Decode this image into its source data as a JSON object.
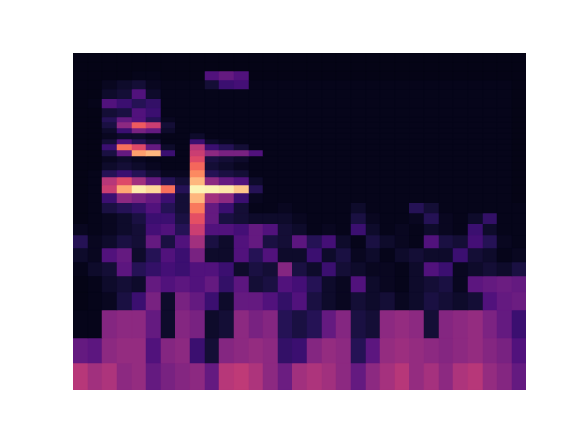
{
  "chart_data": {
    "type": "heatmap",
    "color": "magma",
    "tick_labels": false,
    "xlim": [
      0,
      31
    ],
    "ylim": [
      0,
      369
    ],
    "zlim": [
      0,
      100
    ],
    "y_edges": [
      0,
      29,
      57,
      87,
      107,
      124,
      140,
      155,
      169,
      182,
      194,
      205,
      215,
      224,
      233,
      241,
      249,
      256,
      263,
      269,
      275,
      281,
      287,
      293,
      299,
      309,
      319,
      329,
      339,
      349,
      359,
      369
    ],
    "z": [
      [
        50,
        45,
        48,
        40,
        42,
        30,
        35,
        38,
        40,
        30,
        50,
        52,
        48,
        40,
        32,
        45,
        48,
        45,
        40,
        30,
        40,
        46,
        50,
        42,
        46,
        40,
        48,
        50,
        42,
        38,
        30
      ],
      [
        30,
        28,
        40,
        42,
        42,
        25,
        38,
        40,
        20,
        10,
        38,
        40,
        42,
        40,
        18,
        20,
        38,
        42,
        40,
        15,
        28,
        42,
        44,
        42,
        40,
        38,
        40,
        42,
        38,
        35,
        25
      ],
      [
        5,
        5,
        38,
        40,
        40,
        30,
        8,
        38,
        35,
        8,
        10,
        40,
        35,
        38,
        15,
        12,
        15,
        30,
        38,
        12,
        10,
        40,
        42,
        40,
        10,
        38,
        40,
        42,
        36,
        30,
        20
      ],
      [
        4,
        5,
        6,
        12,
        20,
        35,
        8,
        35,
        30,
        20,
        8,
        30,
        30,
        25,
        18,
        25,
        12,
        8,
        6,
        10,
        8,
        10,
        6,
        8,
        12,
        10,
        8,
        10,
        25,
        30,
        32
      ],
      [
        4,
        5,
        8,
        10,
        8,
        30,
        25,
        28,
        25,
        30,
        18,
        28,
        10,
        12,
        25,
        22,
        15,
        8,
        6,
        25,
        8,
        6,
        5,
        8,
        10,
        12,
        6,
        28,
        30,
        32,
        30
      ],
      [
        5,
        8,
        10,
        28,
        15,
        18,
        22,
        20,
        25,
        25,
        20,
        8,
        12,
        10,
        38,
        12,
        8,
        20,
        10,
        8,
        6,
        6,
        5,
        8,
        25,
        20,
        6,
        8,
        10,
        8,
        12
      ],
      [
        8,
        6,
        25,
        30,
        8,
        15,
        25,
        20,
        35,
        8,
        8,
        25,
        15,
        25,
        8,
        8,
        20,
        8,
        12,
        6,
        8,
        5,
        8,
        10,
        8,
        8,
        20,
        10,
        8,
        5,
        6
      ],
      [
        15,
        6,
        8,
        12,
        10,
        30,
        12,
        25,
        45,
        12,
        8,
        25,
        30,
        12,
        10,
        28,
        15,
        22,
        8,
        5,
        12,
        8,
        6,
        5,
        25,
        12,
        10,
        22,
        15,
        6,
        5
      ],
      [
        6,
        5,
        6,
        8,
        10,
        22,
        25,
        15,
        55,
        25,
        25,
        22,
        30,
        25,
        10,
        8,
        5,
        6,
        5,
        20,
        8,
        5,
        6,
        5,
        8,
        6,
        5,
        20,
        8,
        5,
        5
      ],
      [
        4,
        5,
        6,
        8,
        12,
        20,
        20,
        12,
        62,
        30,
        12,
        10,
        8,
        8,
        8,
        6,
        5,
        5,
        5,
        12,
        6,
        5,
        5,
        6,
        15,
        6,
        5,
        8,
        18,
        5,
        5
      ],
      [
        4,
        5,
        12,
        15,
        18,
        25,
        15,
        10,
        72,
        30,
        20,
        10,
        5,
        5,
        6,
        5,
        5,
        5,
        5,
        8,
        5,
        5,
        5,
        15,
        10,
        5,
        5,
        5,
        5,
        5,
        5
      ],
      [
        4,
        5,
        20,
        40,
        35,
        30,
        20,
        10,
        85,
        45,
        40,
        20,
        6,
        5,
        5,
        5,
        5,
        5,
        5,
        5,
        5,
        5,
        5,
        5,
        5,
        5,
        5,
        5,
        5,
        5,
        4
      ],
      [
        4,
        5,
        55,
        82,
        96,
        92,
        70,
        15,
        98,
        97,
        95,
        88,
        15,
        5,
        5,
        5,
        5,
        5,
        5,
        5,
        5,
        5,
        5,
        5,
        5,
        5,
        5,
        5,
        5,
        5,
        4
      ],
      [
        4,
        5,
        50,
        60,
        45,
        30,
        15,
        10,
        85,
        40,
        30,
        25,
        8,
        5,
        5,
        5,
        5,
        5,
        5,
        5,
        5,
        5,
        5,
        5,
        5,
        5,
        5,
        5,
        5,
        5,
        4
      ],
      [
        4,
        5,
        15,
        20,
        15,
        10,
        6,
        6,
        75,
        15,
        12,
        10,
        5,
        5,
        5,
        5,
        5,
        5,
        5,
        5,
        5,
        5,
        5,
        5,
        5,
        5,
        5,
        5,
        5,
        5,
        4
      ],
      [
        4,
        4,
        8,
        10,
        8,
        6,
        5,
        5,
        68,
        10,
        8,
        6,
        5,
        5,
        5,
        5,
        5,
        5,
        5,
        5,
        5,
        5,
        5,
        5,
        5,
        5,
        5,
        5,
        5,
        5,
        4
      ],
      [
        4,
        4,
        6,
        8,
        6,
        5,
        5,
        5,
        60,
        12,
        10,
        8,
        5,
        5,
        5,
        5,
        5,
        5,
        5,
        5,
        5,
        5,
        5,
        5,
        5,
        5,
        5,
        5,
        5,
        5,
        4
      ],
      [
        4,
        4,
        12,
        30,
        80,
        85,
        20,
        5,
        55,
        40,
        35,
        35,
        25,
        5,
        5,
        5,
        5,
        5,
        5,
        5,
        5,
        5,
        5,
        5,
        5,
        5,
        5,
        5,
        5,
        5,
        4
      ],
      [
        4,
        4,
        20,
        70,
        60,
        30,
        8,
        5,
        50,
        20,
        15,
        10,
        5,
        5,
        5,
        5,
        5,
        5,
        5,
        5,
        5,
        5,
        5,
        5,
        5,
        5,
        5,
        5,
        5,
        5,
        4
      ],
      [
        4,
        4,
        10,
        25,
        15,
        10,
        5,
        5,
        20,
        8,
        6,
        5,
        5,
        5,
        5,
        5,
        5,
        5,
        5,
        5,
        5,
        5,
        5,
        5,
        5,
        5,
        5,
        5,
        5,
        5,
        4
      ],
      [
        4,
        4,
        6,
        8,
        8,
        6,
        5,
        5,
        8,
        5,
        5,
        5,
        5,
        5,
        5,
        5,
        5,
        5,
        5,
        5,
        5,
        5,
        5,
        5,
        5,
        5,
        5,
        5,
        5,
        5,
        4
      ],
      [
        4,
        4,
        8,
        20,
        35,
        30,
        8,
        5,
        5,
        5,
        5,
        5,
        5,
        5,
        5,
        5,
        5,
        5,
        5,
        5,
        5,
        5,
        5,
        5,
        5,
        5,
        5,
        5,
        5,
        5,
        4
      ],
      [
        4,
        4,
        12,
        40,
        65,
        55,
        10,
        5,
        5,
        5,
        5,
        5,
        5,
        5,
        5,
        5,
        5,
        5,
        5,
        5,
        5,
        5,
        5,
        5,
        5,
        5,
        5,
        5,
        5,
        5,
        4
      ],
      [
        4,
        4,
        15,
        30,
        25,
        15,
        6,
        5,
        5,
        5,
        5,
        5,
        5,
        5,
        5,
        5,
        5,
        5,
        5,
        5,
        5,
        5,
        5,
        5,
        5,
        5,
        5,
        5,
        5,
        5,
        4
      ],
      [
        4,
        4,
        10,
        12,
        25,
        20,
        5,
        5,
        5,
        5,
        5,
        5,
        5,
        5,
        5,
        5,
        5,
        5,
        5,
        5,
        5,
        5,
        5,
        5,
        5,
        5,
        5,
        5,
        5,
        5,
        4
      ],
      [
        4,
        5,
        25,
        20,
        15,
        18,
        5,
        5,
        5,
        5,
        5,
        5,
        5,
        5,
        5,
        5,
        5,
        5,
        5,
        5,
        5,
        5,
        5,
        5,
        5,
        5,
        5,
        5,
        5,
        5,
        4
      ],
      [
        4,
        4,
        8,
        10,
        25,
        8,
        5,
        5,
        5,
        5,
        5,
        5,
        5,
        5,
        5,
        5,
        5,
        5,
        5,
        5,
        5,
        5,
        5,
        5,
        5,
        5,
        5,
        5,
        5,
        5,
        4
      ],
      [
        4,
        4,
        6,
        8,
        10,
        6,
        5,
        5,
        5,
        10,
        20,
        22,
        5,
        5,
        5,
        5,
        5,
        5,
        5,
        5,
        5,
        5,
        5,
        5,
        5,
        5,
        5,
        5,
        5,
        5,
        4
      ],
      [
        4,
        4,
        4,
        4,
        5,
        5,
        4,
        4,
        4,
        25,
        30,
        25,
        4,
        4,
        4,
        4,
        4,
        4,
        4,
        4,
        4,
        4,
        4,
        4,
        4,
        4,
        4,
        4,
        4,
        4,
        4
      ],
      [
        4,
        4,
        4,
        4,
        4,
        4,
        4,
        4,
        4,
        4,
        4,
        4,
        4,
        4,
        4,
        4,
        4,
        4,
        4,
        4,
        4,
        4,
        4,
        4,
        4,
        4,
        4,
        4,
        4,
        4,
        4
      ],
      [
        4,
        4,
        4,
        4,
        4,
        4,
        4,
        4,
        4,
        4,
        4,
        4,
        4,
        4,
        4,
        4,
        4,
        4,
        4,
        4,
        4,
        4,
        4,
        4,
        4,
        4,
        4,
        4,
        4,
        4,
        4
      ]
    ]
  }
}
